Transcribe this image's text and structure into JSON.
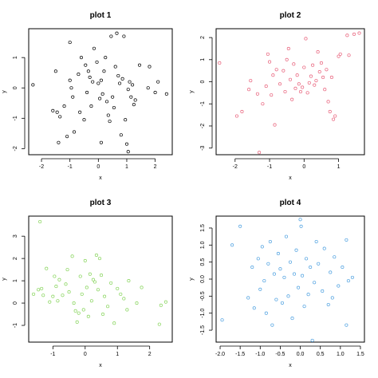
{
  "chart_data": [
    {
      "type": "scatter",
      "title": "plot 1",
      "xlabel": "x",
      "ylabel": "y",
      "color": "#000000",
      "xlim": [
        -2.45,
        2.6
      ],
      "ylim": [
        -2.2,
        1.95
      ],
      "xticks": [
        -2,
        -1,
        0,
        1,
        2
      ],
      "xtick_labels": [
        "-2",
        "-1",
        "0",
        "1",
        "2"
      ],
      "yticks": [
        -2,
        -1,
        0,
        1
      ],
      "ytick_labels": [
        "-2",
        "-1",
        "0",
        "1"
      ],
      "grid": false,
      "points": [
        [
          -2.3,
          0.1
        ],
        [
          -1.6,
          -0.75
        ],
        [
          -1.5,
          0.55
        ],
        [
          -1.45,
          -0.8
        ],
        [
          -1.4,
          -1.8
        ],
        [
          -1.35,
          -0.95
        ],
        [
          -1.2,
          -0.6
        ],
        [
          -1.1,
          -1.6
        ],
        [
          -1.0,
          1.5
        ],
        [
          -1.0,
          0.25
        ],
        [
          -0.95,
          0.0
        ],
        [
          -0.9,
          -0.3
        ],
        [
          -0.85,
          -1.45
        ],
        [
          -0.7,
          0.45
        ],
        [
          -0.65,
          -0.8
        ],
        [
          -0.6,
          1.0
        ],
        [
          -0.5,
          -1.05
        ],
        [
          -0.45,
          0.75
        ],
        [
          -0.4,
          -0.15
        ],
        [
          -0.35,
          0.55
        ],
        [
          -0.3,
          0.35
        ],
        [
          -0.25,
          -0.6
        ],
        [
          -0.2,
          0.2
        ],
        [
          -0.15,
          1.3
        ],
        [
          -0.05,
          0.85
        ],
        [
          0.0,
          0.15
        ],
        [
          0.05,
          -0.35
        ],
        [
          0.1,
          0.25
        ],
        [
          0.1,
          -1.8
        ],
        [
          0.15,
          -0.2
        ],
        [
          0.2,
          0.55
        ],
        [
          0.25,
          1.0
        ],
        [
          0.3,
          -0.45
        ],
        [
          0.35,
          -0.9
        ],
        [
          0.4,
          -1.1
        ],
        [
          0.45,
          1.7
        ],
        [
          0.5,
          -0.3
        ],
        [
          0.55,
          -0.65
        ],
        [
          0.6,
          0.7
        ],
        [
          0.65,
          1.8
        ],
        [
          0.7,
          0.4
        ],
        [
          0.75,
          0.15
        ],
        [
          0.8,
          -1.55
        ],
        [
          0.85,
          0.3
        ],
        [
          0.9,
          1.7
        ],
        [
          0.95,
          -1.05
        ],
        [
          1.0,
          -1.85
        ],
        [
          1.05,
          -0.05
        ],
        [
          1.05,
          -2.1
        ],
        [
          1.1,
          0.2
        ],
        [
          1.15,
          -0.3
        ],
        [
          1.2,
          0.1
        ],
        [
          1.25,
          -0.55
        ],
        [
          1.3,
          -0.4
        ],
        [
          1.45,
          0.75
        ],
        [
          1.75,
          0.0
        ],
        [
          1.8,
          0.7
        ],
        [
          2.0,
          -0.15
        ],
        [
          2.1,
          0.2
        ],
        [
          2.4,
          -0.2
        ]
      ]
    },
    {
      "type": "scatter",
      "title": "plot 2",
      "xlabel": "x",
      "ylabel": "y",
      "color": "#e8607a",
      "xlim": [
        -2.55,
        1.75
      ],
      "ylim": [
        -3.3,
        2.4
      ],
      "xticks": [
        -2,
        -1,
        0,
        1
      ],
      "xtick_labels": [
        "-2",
        "-1",
        "0",
        "1"
      ],
      "yticks": [
        -3,
        -2,
        -1,
        0,
        1,
        2
      ],
      "ytick_labels": [
        "-3",
        "-2",
        "-1",
        "0",
        "1",
        "2"
      ],
      "grid": false,
      "points": [
        [
          -2.45,
          0.85
        ],
        [
          -1.95,
          -1.55
        ],
        [
          -1.8,
          -1.35
        ],
        [
          -1.6,
          -0.35
        ],
        [
          -1.55,
          0.05
        ],
        [
          -1.35,
          -0.55
        ],
        [
          -1.3,
          -3.2
        ],
        [
          -1.2,
          -1.0
        ],
        [
          -1.1,
          -0.2
        ],
        [
          -1.05,
          1.25
        ],
        [
          -1.0,
          0.9
        ],
        [
          -0.95,
          -0.6
        ],
        [
          -0.9,
          0.3
        ],
        [
          -0.85,
          -1.95
        ],
        [
          -0.8,
          0.55
        ],
        [
          -0.7,
          -0.1
        ],
        [
          -0.6,
          0.5
        ],
        [
          -0.55,
          -0.45
        ],
        [
          -0.5,
          1.0
        ],
        [
          -0.45,
          1.5
        ],
        [
          -0.4,
          0.1
        ],
        [
          -0.35,
          -0.8
        ],
        [
          -0.3,
          0.8
        ],
        [
          -0.25,
          -0.3
        ],
        [
          -0.2,
          0.3
        ],
        [
          -0.15,
          -0.1
        ],
        [
          -0.1,
          -0.45
        ],
        [
          -0.05,
          -0.25
        ],
        [
          0.0,
          0.65
        ],
        [
          0.05,
          1.95
        ],
        [
          0.1,
          -0.5
        ],
        [
          0.15,
          -0.05
        ],
        [
          0.2,
          0.25
        ],
        [
          0.25,
          0.75
        ],
        [
          0.3,
          -0.15
        ],
        [
          0.35,
          0.05
        ],
        [
          0.4,
          1.35
        ],
        [
          0.45,
          0.45
        ],
        [
          0.5,
          0.85
        ],
        [
          0.55,
          0.2
        ],
        [
          0.6,
          -0.35
        ],
        [
          0.65,
          0.55
        ],
        [
          0.7,
          -0.9
        ],
        [
          0.75,
          -1.35
        ],
        [
          0.8,
          0.2
        ],
        [
          0.85,
          -1.7
        ],
        [
          0.9,
          -1.55
        ],
        [
          1.0,
          1.15
        ],
        [
          1.05,
          1.25
        ],
        [
          1.25,
          2.1
        ],
        [
          1.3,
          1.2
        ],
        [
          1.45,
          2.15
        ],
        [
          1.6,
          2.2
        ]
      ]
    },
    {
      "type": "scatter",
      "title": "plot 3",
      "xlabel": "x",
      "ylabel": "y",
      "color": "#86d45a",
      "xlim": [
        -1.75,
        2.7
      ],
      "ylim": [
        -1.75,
        3.9
      ],
      "xticks": [
        -1,
        0,
        1,
        2
      ],
      "xtick_labels": [
        "-1",
        "0",
        "1",
        "2"
      ],
      "yticks": [
        -1,
        0,
        1,
        2,
        3
      ],
      "ytick_labels": [
        "-1",
        "0",
        "1",
        "2",
        "3"
      ],
      "grid": false,
      "points": [
        [
          -1.6,
          0.4
        ],
        [
          -1.45,
          0.6
        ],
        [
          -1.4,
          3.65
        ],
        [
          -1.35,
          0.65
        ],
        [
          -1.3,
          0.35
        ],
        [
          -1.2,
          1.55
        ],
        [
          -1.1,
          0.05
        ],
        [
          -1.0,
          0.3
        ],
        [
          -0.95,
          1.2
        ],
        [
          -0.9,
          0.75
        ],
        [
          -0.85,
          0.1
        ],
        [
          -0.8,
          1.05
        ],
        [
          -0.7,
          0.35
        ],
        [
          -0.6,
          0.85
        ],
        [
          -0.55,
          1.5
        ],
        [
          -0.5,
          0.5
        ],
        [
          -0.4,
          2.1
        ],
        [
          -0.35,
          0.0
        ],
        [
          -0.3,
          -0.35
        ],
        [
          -0.25,
          -0.85
        ],
        [
          -0.2,
          -0.45
        ],
        [
          -0.15,
          1.2
        ],
        [
          -0.1,
          0.4
        ],
        [
          -0.05,
          -0.3
        ],
        [
          0.0,
          1.9
        ],
        [
          0.05,
          0.7
        ],
        [
          0.1,
          -0.6
        ],
        [
          0.15,
          1.3
        ],
        [
          0.2,
          0.1
        ],
        [
          0.25,
          1.05
        ],
        [
          0.3,
          0.95
        ],
        [
          0.35,
          2.15
        ],
        [
          0.4,
          0.6
        ],
        [
          0.45,
          2.0
        ],
        [
          0.5,
          1.25
        ],
        [
          0.55,
          -0.5
        ],
        [
          0.6,
          0.3
        ],
        [
          0.7,
          -0.15
        ],
        [
          0.8,
          0.9
        ],
        [
          0.9,
          -0.9
        ],
        [
          1.0,
          0.65
        ],
        [
          1.1,
          0.4
        ],
        [
          1.2,
          0.2
        ],
        [
          1.3,
          -0.3
        ],
        [
          1.35,
          1.0
        ],
        [
          1.6,
          0.0
        ],
        [
          1.75,
          0.7
        ],
        [
          2.3,
          -0.95
        ],
        [
          2.35,
          -0.1
        ],
        [
          2.5,
          0.05
        ]
      ]
    },
    {
      "type": "scatter",
      "title": "plot 4",
      "xlabel": "x",
      "ylabel": "y",
      "color": "#4da0e0",
      "xlim": [
        -2.1,
        1.6
      ],
      "ylim": [
        -1.85,
        1.85
      ],
      "xticks": [
        -2.0,
        -1.5,
        -1.0,
        -0.5,
        0.0,
        0.5,
        1.0,
        1.5
      ],
      "xtick_labels": [
        "-2.0",
        "-1.5",
        "-1.0",
        "-0.5",
        "0.0",
        "0.5",
        "1.0",
        "1.5"
      ],
      "yticks": [
        -1.5,
        -1.0,
        -0.5,
        0.0,
        0.5,
        1.0,
        1.5
      ],
      "ytick_labels": [
        "-1.5",
        "-1.0",
        "-0.5",
        "0.0",
        "0.5",
        "1.0",
        "1.5"
      ],
      "grid": false,
      "points": [
        [
          -1.95,
          -1.2
        ],
        [
          -1.7,
          1.0
        ],
        [
          -1.5,
          1.55
        ],
        [
          -1.3,
          -0.55
        ],
        [
          -1.2,
          0.35
        ],
        [
          -1.15,
          -0.85
        ],
        [
          -1.05,
          0.6
        ],
        [
          -1.0,
          -0.3
        ],
        [
          -0.95,
          0.95
        ],
        [
          -0.9,
          -0.05
        ],
        [
          -0.85,
          -1.0
        ],
        [
          -0.8,
          0.45
        ],
        [
          -0.75,
          1.1
        ],
        [
          -0.7,
          -1.35
        ],
        [
          -0.65,
          0.15
        ],
        [
          -0.6,
          -0.6
        ],
        [
          -0.55,
          0.75
        ],
        [
          -0.5,
          0.3
        ],
        [
          -0.45,
          -0.7
        ],
        [
          -0.4,
          0.05
        ],
        [
          -0.35,
          1.25
        ],
        [
          -0.3,
          -0.5
        ],
        [
          -0.25,
          0.5
        ],
        [
          -0.2,
          -1.15
        ],
        [
          -0.15,
          0.15
        ],
        [
          -0.1,
          0.85
        ],
        [
          -0.05,
          -0.25
        ],
        [
          0.0,
          1.75
        ],
        [
          0.02,
          1.55
        ],
        [
          0.05,
          0.1
        ],
        [
          0.1,
          -0.8
        ],
        [
          0.15,
          0.6
        ],
        [
          0.2,
          -0.45
        ],
        [
          0.25,
          0.35
        ],
        [
          0.3,
          -1.8
        ],
        [
          0.35,
          -0.1
        ],
        [
          0.4,
          1.1
        ],
        [
          0.45,
          0.45
        ],
        [
          0.55,
          -0.35
        ],
        [
          0.6,
          0.9
        ],
        [
          0.7,
          -0.75
        ],
        [
          0.75,
          0.2
        ],
        [
          0.8,
          -0.55
        ],
        [
          0.85,
          0.65
        ],
        [
          0.95,
          -0.2
        ],
        [
          1.05,
          0.35
        ],
        [
          1.15,
          1.15
        ],
        [
          1.15,
          -1.35
        ],
        [
          1.2,
          -0.05
        ],
        [
          1.3,
          0.05
        ]
      ]
    }
  ]
}
